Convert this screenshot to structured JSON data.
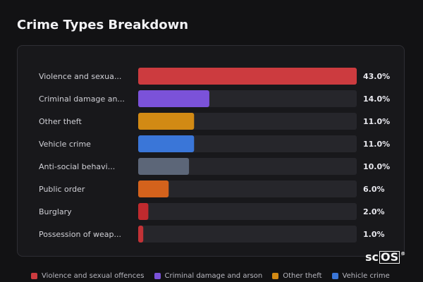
{
  "title": "Crime Types Breakdown",
  "colors": {
    "violence": "#cc3b3f",
    "criminal_damage": "#7b52d9",
    "other_theft": "#d28a14",
    "vehicle_crime": "#3a76d8",
    "anti_social": "#5c6678",
    "public_order": "#d4621c",
    "burglary": "#c02a2e",
    "weapons": "#c23236",
    "track": "#26262b"
  },
  "chart_data": {
    "type": "bar",
    "orientation": "horizontal",
    "categories": [
      "Violence and sexua...",
      "Criminal damage an...",
      "Other theft",
      "Vehicle crime",
      "Anti-social behavi...",
      "Public order",
      "Burglary",
      "Possession of weap..."
    ],
    "values": [
      43.0,
      14.0,
      11.0,
      11.0,
      10.0,
      6.0,
      2.0,
      1.0
    ],
    "value_labels": [
      "43.0%",
      "14.0%",
      "11.0%",
      "11.0%",
      "10.0%",
      "6.0%",
      "2.0%",
      "1.0%"
    ],
    "bar_colors": [
      "#cc3b3f",
      "#7b52d9",
      "#d28a14",
      "#3a76d8",
      "#5c6678",
      "#d4621c",
      "#c02a2e",
      "#c23236"
    ],
    "xlim": [
      0,
      43
    ],
    "grid": false,
    "legend_position": "bottom"
  },
  "legend": [
    {
      "label": "Violence and sexual offences",
      "color": "#cc3b3f"
    },
    {
      "label": "Criminal damage and arson",
      "color": "#7b52d9"
    },
    {
      "label": "Other theft",
      "color": "#d28a14"
    },
    {
      "label": "Vehicle crime",
      "color": "#3a76d8"
    }
  ],
  "logo": {
    "prefix": "sc",
    "boxed": "OS",
    "mark": "®"
  }
}
